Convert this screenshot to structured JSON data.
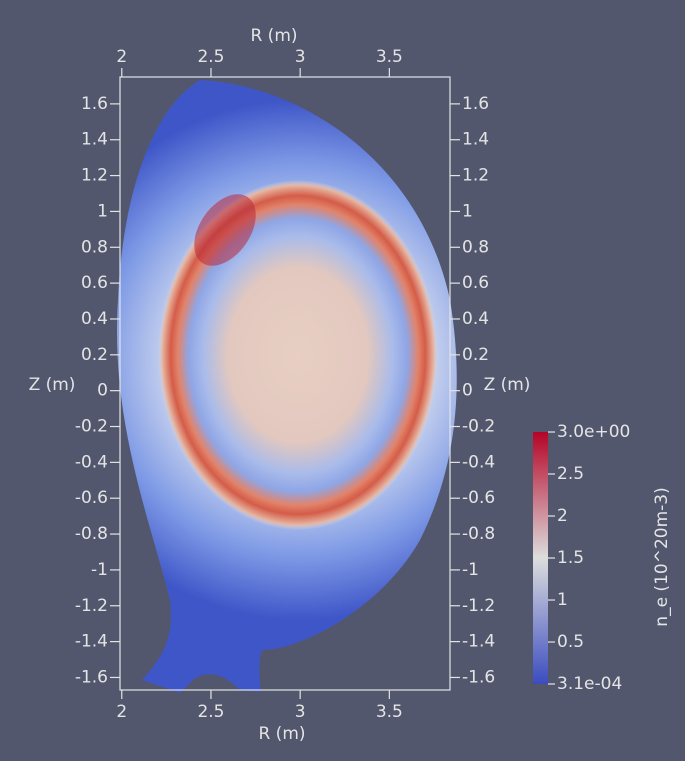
{
  "chart_data": {
    "type": "field",
    "x_label": "R (m)",
    "y_label": "Z (m)",
    "xlim": [
      1.99,
      3.84
    ],
    "xticks": [
      2,
      2.5,
      3,
      3.5
    ],
    "ylim": [
      -1.67,
      1.75
    ],
    "yticks": [
      1.6,
      1.4,
      1.2,
      1,
      0.8,
      0.6,
      0.4,
      0.2,
      0,
      -0.2,
      -0.4,
      -0.6,
      -0.8,
      -1,
      -1.2,
      -1.4,
      -1.6
    ],
    "colorbar": {
      "title": "n_e (10^20m-3)",
      "range": [
        0.00031,
        3
      ],
      "ticks": [
        {
          "value": 3,
          "label": "3.0e+00"
        },
        2.5,
        2,
        1.5,
        1,
        0.5,
        {
          "value": 0.00031,
          "label": "3.1e-04"
        }
      ],
      "colors": [
        "#3b4cc0",
        "#dddddd",
        "#b40426"
      ]
    }
  }
}
